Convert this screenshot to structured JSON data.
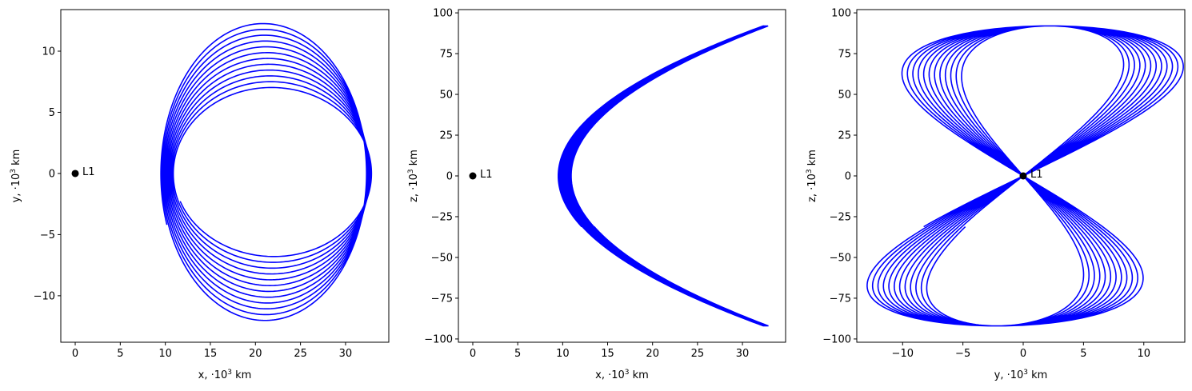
{
  "chart_data": [
    {
      "type": "line",
      "panel": "xy",
      "xlabel": "x, ·10",
      "xlabel_sup": "3",
      "xlabel_unit": " km",
      "ylabel": "y, ·10",
      "ylabel_sup": "3",
      "ylabel_unit": " km",
      "xlim": [
        -1.6,
        34.8
      ],
      "ylim": [
        -13.8,
        13.4
      ],
      "xticks": [
        0,
        5,
        10,
        15,
        20,
        25,
        30
      ],
      "yticks": [
        -10,
        -5,
        0,
        5,
        10
      ],
      "xtick_labels": [
        "0",
        "5",
        "10",
        "15",
        "20",
        "25",
        "30"
      ],
      "ytick_labels": [
        "−10",
        "−5",
        "0",
        "5",
        "10"
      ],
      "grid": false,
      "series_color": "#0000ff",
      "trajectory": {
        "x_min_start": 9.5,
        "x_min_end": 11.0,
        "x_max_start": 32.3,
        "x_max_end": 32.9,
        "y_amp_start": 12.4,
        "y_amp_end": 6.7,
        "z_amp": 92,
        "revolutions": 12,
        "start_phase_y": -4.2
      },
      "point": {
        "label": "L1",
        "x": 0,
        "y": 0,
        "color": "#000000"
      }
    },
    {
      "type": "line",
      "panel": "xz",
      "xlabel": "x, ·10",
      "xlabel_sup": "3",
      "xlabel_unit": " km",
      "ylabel": "z, ·10",
      "ylabel_sup": "3",
      "ylabel_unit": " km",
      "xlim": [
        -1.6,
        34.8
      ],
      "ylim": [
        -102,
        102
      ],
      "xticks": [
        0,
        5,
        10,
        15,
        20,
        25,
        30
      ],
      "yticks": [
        -100,
        -75,
        -50,
        -25,
        0,
        25,
        50,
        75,
        100
      ],
      "xtick_labels": [
        "0",
        "5",
        "10",
        "15",
        "20",
        "25",
        "30"
      ],
      "ytick_labels": [
        "−100",
        "−75",
        "−50",
        "−25",
        "0",
        "25",
        "50",
        "75",
        "100"
      ],
      "grid": false,
      "series_color": "#0000ff",
      "point": {
        "label": "L1",
        "x": 0,
        "y": 0,
        "color": "#000000"
      }
    },
    {
      "type": "line",
      "panel": "yz",
      "xlabel": "y, ·10",
      "xlabel_sup": "3",
      "xlabel_unit": " km",
      "ylabel": "z, ·10",
      "ylabel_sup": "3",
      "ylabel_unit": " km",
      "xlim": [
        -13.8,
        13.4
      ],
      "ylim": [
        -102,
        102
      ],
      "xticks": [
        -10,
        -5,
        0,
        5,
        10
      ],
      "yticks": [
        -100,
        -75,
        -50,
        -25,
        0,
        25,
        50,
        75,
        100
      ],
      "xtick_labels": [
        "−10",
        "−5",
        "0",
        "5",
        "10"
      ],
      "ytick_labels": [
        "−100",
        "−75",
        "−50",
        "−25",
        "0",
        "25",
        "50",
        "75",
        "100"
      ],
      "grid": false,
      "series_color": "#0000ff",
      "point": {
        "label": "L1",
        "x": 0,
        "y": 0,
        "color": "#000000"
      }
    }
  ]
}
